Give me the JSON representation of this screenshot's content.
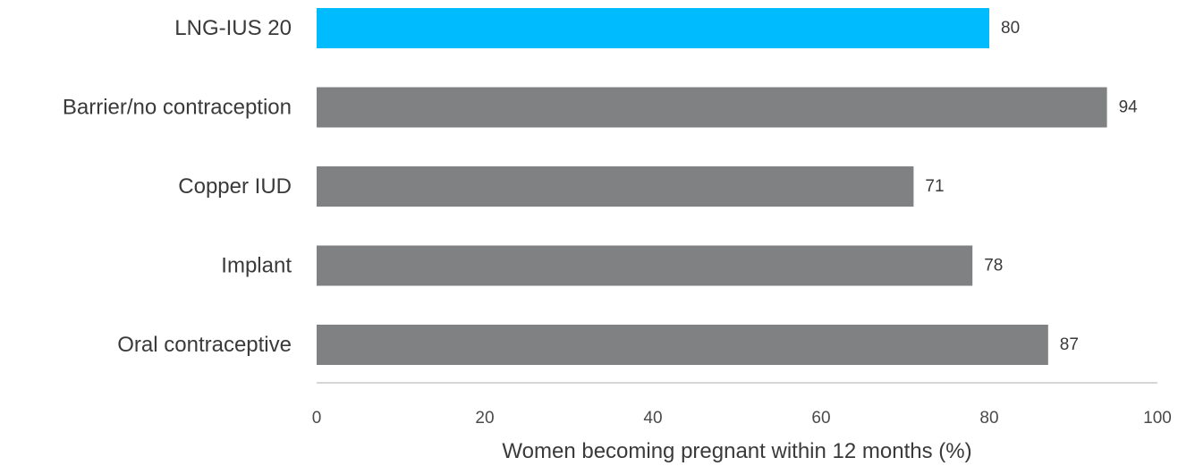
{
  "chart_data": {
    "type": "bar",
    "orientation": "horizontal",
    "categories": [
      "LNG-IUS 20",
      "Barrier/no contraception",
      "Copper IUD",
      "Implant",
      "Oral contraceptive"
    ],
    "values": [
      80,
      94,
      71,
      78,
      87
    ],
    "title": "",
    "xlabel": "Women becoming pregnant within 12 months (%)",
    "ylabel": "",
    "xlim": [
      0,
      100
    ],
    "xticks": [
      0,
      20,
      40,
      60,
      80,
      100
    ],
    "grid": false,
    "legend": "none",
    "colors": {
      "highlight": "#00bcff",
      "default": "#808183",
      "axis": "#c8c8c8"
    },
    "highlight_index": 0
  }
}
